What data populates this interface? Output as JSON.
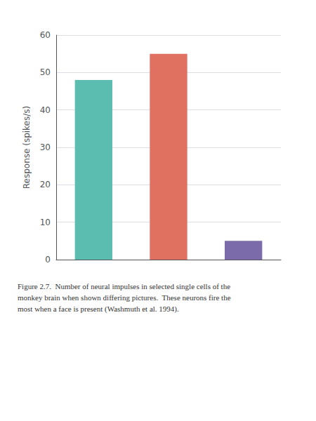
{
  "chart_data": {
    "type": "bar",
    "ylabel": "Response (spikes/s)",
    "categories": [
      null,
      null,
      null
    ],
    "values": [
      48,
      55,
      5
    ],
    "colors": [
      "#5bbcb0",
      "#e07060",
      "#7b6baa"
    ],
    "ylim": [
      0,
      60
    ],
    "yticks": [
      0,
      10,
      20,
      30,
      40,
      50,
      60
    ],
    "grid": true,
    "tick_labels": "y",
    "caption": "Figure 2.7.  Number of neural impulses in selected single cells of the\nmonkey brain when shown differing pictures.  These neurons fire the\nmost when a face is present (Washmuth et al. 1994)."
  }
}
